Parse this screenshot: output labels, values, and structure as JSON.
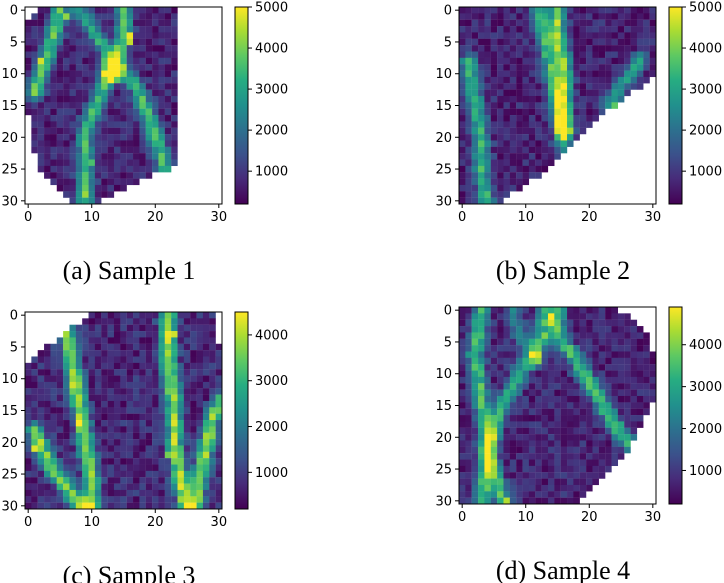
{
  "figure": {
    "colormap": "viridis",
    "background": "#ffffff"
  },
  "chart_data": [
    {
      "type": "heatmap",
      "caption": "(a) Sample 1",
      "grid_size": 31,
      "xticks": [
        0,
        10,
        20,
        30
      ],
      "yticks": [
        0,
        5,
        10,
        15,
        20,
        25,
        30
      ],
      "colorbar": {
        "min": 200,
        "max": 5000,
        "ticks": [
          1000,
          2000,
          3000,
          4000,
          5000
        ]
      },
      "base_value": 700,
      "mask_polygon": [
        [
          2,
          0
        ],
        [
          24,
          0
        ],
        [
          24,
          25
        ],
        [
          17,
          28
        ],
        [
          11,
          31
        ],
        [
          8,
          31
        ],
        [
          5,
          29
        ],
        [
          2,
          25
        ],
        [
          1,
          21
        ],
        [
          0,
          13
        ],
        [
          0,
          3
        ]
      ],
      "paths": [
        {
          "points": [
            [
              5,
              0
            ],
            [
              4,
              4
            ],
            [
              3,
              7
            ],
            [
              2,
              10
            ],
            [
              1,
              13
            ]
          ],
          "peak": 3000,
          "width": 0.9
        },
        {
          "points": [
            [
              8,
              0
            ],
            [
              10,
              3
            ],
            [
              12,
              6
            ],
            [
              13,
              9
            ]
          ],
          "peak": 2400,
          "width": 0.9
        },
        {
          "points": [
            [
              15,
              0
            ],
            [
              15,
              4
            ],
            [
              14,
              8
            ],
            [
              13,
              10
            ]
          ],
          "peak": 3000,
          "width": 0.9
        },
        {
          "points": [
            [
              13,
              10
            ],
            [
              11,
              14
            ],
            [
              9,
              19
            ],
            [
              9,
              24
            ],
            [
              9,
              30
            ]
          ],
          "peak": 2800,
          "width": 0.9
        },
        {
          "points": [
            [
              14,
              9
            ],
            [
              17,
              12
            ],
            [
              19,
              17
            ],
            [
              21,
              23
            ],
            [
              22,
              27
            ]
          ],
          "peak": 2800,
          "width": 0.9
        }
      ],
      "hotspots": [
        {
          "x": 16,
          "y": 4,
          "value": 4900
        },
        {
          "x": 16,
          "y": 5,
          "value": 4600
        },
        {
          "x": 2,
          "y": 8,
          "value": 4700
        },
        {
          "x": 6,
          "y": 1,
          "value": 4200
        },
        {
          "x": 12,
          "y": 9,
          "value": 3800
        },
        {
          "x": 9,
          "y": 29,
          "value": 4300
        },
        {
          "x": 10,
          "y": 24,
          "value": 3600
        },
        {
          "x": 20,
          "y": 19,
          "value": 3700
        }
      ],
      "noise": 500,
      "seed": 11
    },
    {
      "type": "heatmap",
      "caption": "(b) Sample 2",
      "grid_size": 31,
      "xticks": [
        0,
        10,
        20,
        30
      ],
      "yticks": [
        0,
        5,
        10,
        15,
        20,
        25,
        30
      ],
      "colorbar": {
        "min": 200,
        "max": 5000,
        "ticks": [
          1000,
          2000,
          3000,
          4000,
          5000
        ]
      },
      "base_value": 700,
      "mask_polygon": [
        [
          0,
          0
        ],
        [
          31,
          0
        ],
        [
          31,
          11
        ],
        [
          24,
          16
        ],
        [
          19,
          21
        ],
        [
          12,
          27
        ],
        [
          6,
          31
        ],
        [
          0,
          31
        ]
      ],
      "paths": [
        {
          "points": [
            [
              1,
              8
            ],
            [
              2,
              14
            ],
            [
              3,
              20
            ],
            [
              3,
              25
            ],
            [
              4,
              31
            ]
          ],
          "peak": 2600,
          "width": 0.9
        },
        {
          "points": [
            [
              12,
              0
            ],
            [
              13,
              5
            ],
            [
              14,
              10
            ],
            [
              15,
              15
            ],
            [
              16,
              21
            ]
          ],
          "peak": 2600,
          "width": 0.9
        },
        {
          "points": [
            [
              15,
              0
            ],
            [
              15,
              4
            ],
            [
              16,
              9
            ],
            [
              16,
              14
            ],
            [
              16,
              19
            ]
          ],
          "peak": 3500,
          "width": 0.9
        },
        {
          "points": [
            [
              28,
              8
            ],
            [
              25,
              12
            ],
            [
              23,
              15
            ]
          ],
          "peak": 2200,
          "width": 0.9
        }
      ],
      "hotspots": [
        {
          "x": 16,
          "y": 17,
          "value": 5000
        },
        {
          "x": 16,
          "y": 15,
          "value": 4700
        },
        {
          "x": 15,
          "y": 11,
          "value": 4500
        },
        {
          "x": 15,
          "y": 5,
          "value": 4200
        },
        {
          "x": 17,
          "y": 19,
          "value": 4400
        },
        {
          "x": 24,
          "y": 15,
          "value": 3800
        },
        {
          "x": 3,
          "y": 21,
          "value": 3700
        }
      ],
      "noise": 500,
      "seed": 23
    },
    {
      "type": "heatmap",
      "caption": "(c) Sample 3",
      "grid_size": 31,
      "xticks": [
        0,
        10,
        20,
        30
      ],
      "yticks": [
        0,
        5,
        10,
        15,
        20,
        25,
        30
      ],
      "colorbar": {
        "min": 200,
        "max": 4500,
        "ticks": [
          1000,
          2000,
          3000,
          4000
        ]
      },
      "base_value": 700,
      "mask_polygon": [
        [
          11,
          0
        ],
        [
          30,
          0
        ],
        [
          31,
          9
        ],
        [
          31,
          31
        ],
        [
          0,
          31
        ],
        [
          0,
          8
        ],
        [
          4,
          5
        ]
      ],
      "paths": [
        {
          "points": [
            [
              6,
              3
            ],
            [
              7,
              8
            ],
            [
              8,
              14
            ],
            [
              9,
              20
            ],
            [
              10,
              26
            ],
            [
              10,
              31
            ]
          ],
          "peak": 3200,
          "width": 0.9
        },
        {
          "points": [
            [
              22,
              0
            ],
            [
              22,
              7
            ],
            [
              23,
              14
            ],
            [
              23,
              20
            ],
            [
              24,
              26
            ],
            [
              25,
              31
            ]
          ],
          "peak": 3200,
          "width": 0.9
        },
        {
          "points": [
            [
              1,
              18
            ],
            [
              3,
              23
            ],
            [
              6,
              27
            ],
            [
              9,
              31
            ]
          ],
          "peak": 3000,
          "width": 0.9
        },
        {
          "points": [
            [
              31,
              13
            ],
            [
              29,
              16
            ],
            [
              28,
              21
            ],
            [
              27,
              26
            ],
            [
              26,
              31
            ]
          ],
          "peak": 3000,
          "width": 0.9
        }
      ],
      "hotspots": [
        {
          "x": 8,
          "y": 17,
          "value": 4500
        },
        {
          "x": 7,
          "y": 11,
          "value": 4200
        },
        {
          "x": 23,
          "y": 3,
          "value": 4200
        },
        {
          "x": 1,
          "y": 21,
          "value": 4300
        },
        {
          "x": 22,
          "y": 22,
          "value": 3600
        },
        {
          "x": 29,
          "y": 19,
          "value": 3700
        },
        {
          "x": 27,
          "y": 25,
          "value": 3500
        }
      ],
      "noise": 500,
      "seed": 37
    },
    {
      "type": "heatmap",
      "caption": "(d) Sample 4",
      "grid_size": 31,
      "xticks": [
        0,
        10,
        20,
        30
      ],
      "yticks": [
        0,
        5,
        10,
        15,
        20,
        25,
        30
      ],
      "colorbar": {
        "min": 200,
        "max": 4900,
        "ticks": [
          1000,
          2000,
          3000,
          4000
        ]
      },
      "base_value": 700,
      "mask_polygon": [
        [
          0,
          0
        ],
        [
          24,
          0
        ],
        [
          28,
          2
        ],
        [
          30,
          5
        ],
        [
          31,
          9
        ],
        [
          31,
          14
        ],
        [
          28,
          20
        ],
        [
          26,
          24
        ],
        [
          23,
          27
        ],
        [
          20,
          30
        ],
        [
          18,
          31
        ],
        [
          0,
          31
        ]
      ],
      "paths": [
        {
          "points": [
            [
              3,
              0
            ],
            [
              2,
              7
            ],
            [
              3,
              14
            ],
            [
              4,
              21
            ],
            [
              5,
              26
            ],
            [
              7,
              31
            ]
          ],
          "peak": 2800,
          "width": 0.9
        },
        {
          "points": [
            [
              13,
              0
            ],
            [
              12,
              6
            ],
            [
              9,
              10
            ],
            [
              6,
              16
            ],
            [
              4,
              22
            ],
            [
              3,
              31
            ]
          ],
          "peak": 2600,
          "width": 0.9
        },
        {
          "points": [
            [
              15,
              0
            ],
            [
              15,
              4
            ],
            [
              18,
              8
            ],
            [
              21,
              13
            ],
            [
              24,
              18
            ],
            [
              27,
              22
            ]
          ],
          "peak": 2800,
          "width": 0.9
        },
        {
          "points": [
            [
              8,
              0
            ],
            [
              9,
              4
            ],
            [
              12,
              8
            ]
          ],
          "peak": 1800,
          "width": 0.8
        }
      ],
      "hotspots": [
        {
          "x": 14,
          "y": 1,
          "value": 4900
        },
        {
          "x": 14,
          "y": 2,
          "value": 4600
        },
        {
          "x": 13,
          "y": 4,
          "value": 4000
        },
        {
          "x": 7,
          "y": 30,
          "value": 4400
        },
        {
          "x": 5,
          "y": 17,
          "value": 3600
        },
        {
          "x": 21,
          "y": 13,
          "value": 3700
        },
        {
          "x": 4,
          "y": 28,
          "value": 3800
        }
      ],
      "noise": 500,
      "seed": 53
    }
  ]
}
